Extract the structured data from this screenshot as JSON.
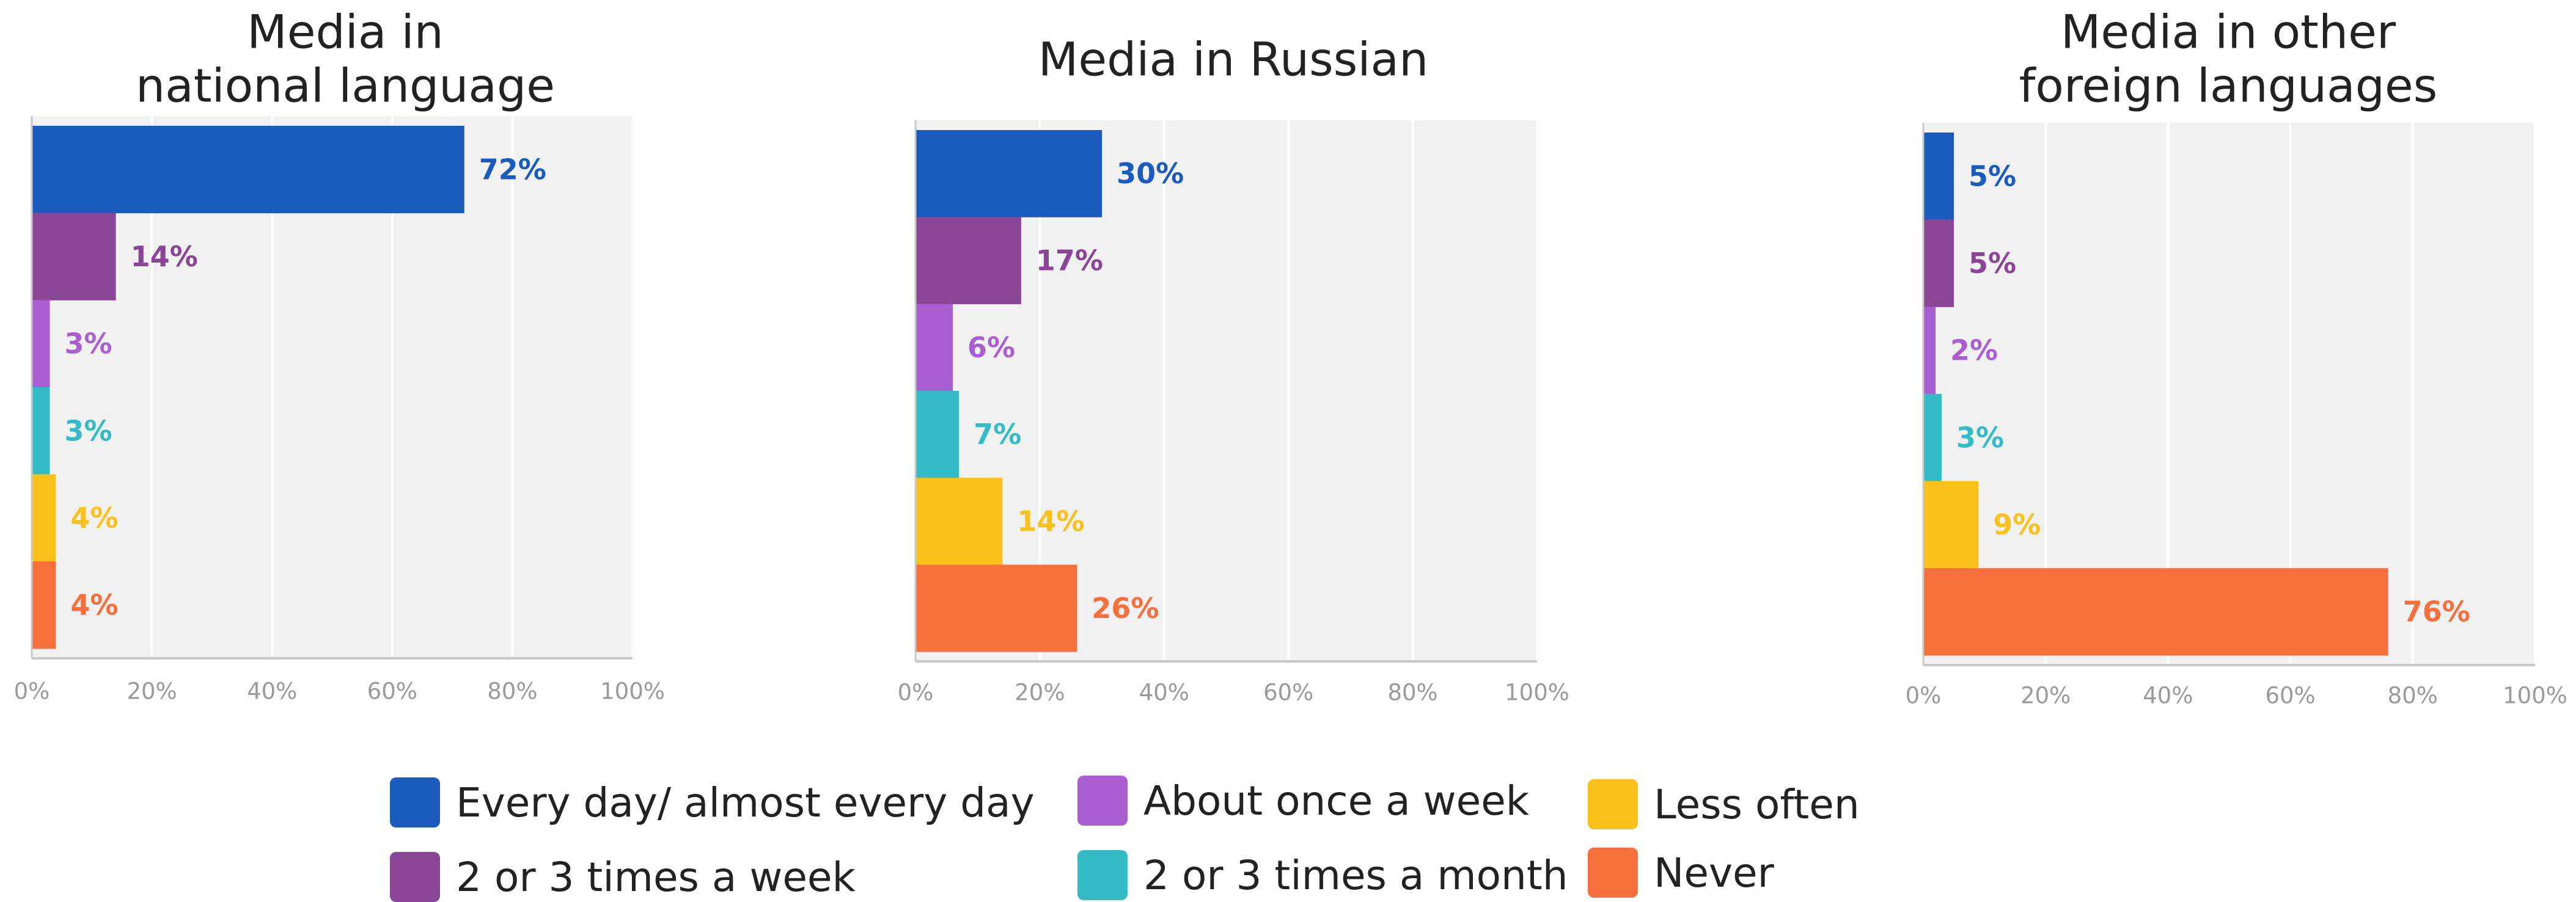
{
  "colors": {
    "plot_bg": "#f1f1f1",
    "grid": "#ffffff",
    "axis": "#c8c8c8",
    "tick_text": "#9a9a9a",
    "title_text": "#222222"
  },
  "legend": {
    "items": [
      {
        "label": "Every day/ almost every day",
        "color": "#1b5bbd"
      },
      {
        "label": "2 or 3 times a week",
        "color": "#8a4596"
      },
      {
        "label": "About once a week",
        "color": "#a95fd1"
      },
      {
        "label": "2 or 3 times a month",
        "color": "#33bcc5"
      },
      {
        "label": "Less often",
        "color": "#fbc11a"
      },
      {
        "label": "Never",
        "color": "#f86f3e"
      }
    ]
  },
  "chart_data": [
    {
      "type": "bar",
      "orientation": "horizontal",
      "title": [
        "Media in",
        "national language"
      ],
      "categories": [
        "Every day/ almost every day",
        "2 or 3 times a week",
        "About once a week",
        "2 or 3 times a month",
        "Less often",
        "Never"
      ],
      "values": [
        72,
        14,
        3,
        3,
        4,
        4
      ],
      "value_labels": [
        "72%",
        "14%",
        "3%",
        "3%",
        "4%",
        "4%"
      ],
      "xlim": [
        0,
        100
      ],
      "xticks": [
        "0%",
        "20%",
        "40%",
        "60%",
        "80%",
        "100%"
      ],
      "grid": true
    },
    {
      "type": "bar",
      "orientation": "horizontal",
      "title": [
        "Media in Russian"
      ],
      "categories": [
        "Every day/ almost every day",
        "2 or 3 times a week",
        "About once a week",
        "2 or 3 times a month",
        "Less often",
        "Never"
      ],
      "values": [
        30,
        17,
        6,
        7,
        14,
        26
      ],
      "value_labels": [
        "30%",
        "17%",
        "6%",
        "7%",
        "14%",
        "26%"
      ],
      "xlim": [
        0,
        100
      ],
      "xticks": [
        "0%",
        "20%",
        "40%",
        "60%",
        "80%",
        "100%"
      ],
      "grid": true
    },
    {
      "type": "bar",
      "orientation": "horizontal",
      "title": [
        "Media in other",
        "foreign languages"
      ],
      "categories": [
        "Every day/ almost every day",
        "2 or 3 times a week",
        "About once a week",
        "2 or 3 times a month",
        "Less often",
        "Never"
      ],
      "values": [
        5,
        5,
        2,
        3,
        9,
        76
      ],
      "value_labels": [
        "5%",
        "5%",
        "2%",
        "3%",
        "9%",
        "76%"
      ],
      "xlim": [
        0,
        100
      ],
      "xticks": [
        "0%",
        "20%",
        "40%",
        "60%",
        "80%",
        "100%"
      ],
      "grid": true
    }
  ]
}
